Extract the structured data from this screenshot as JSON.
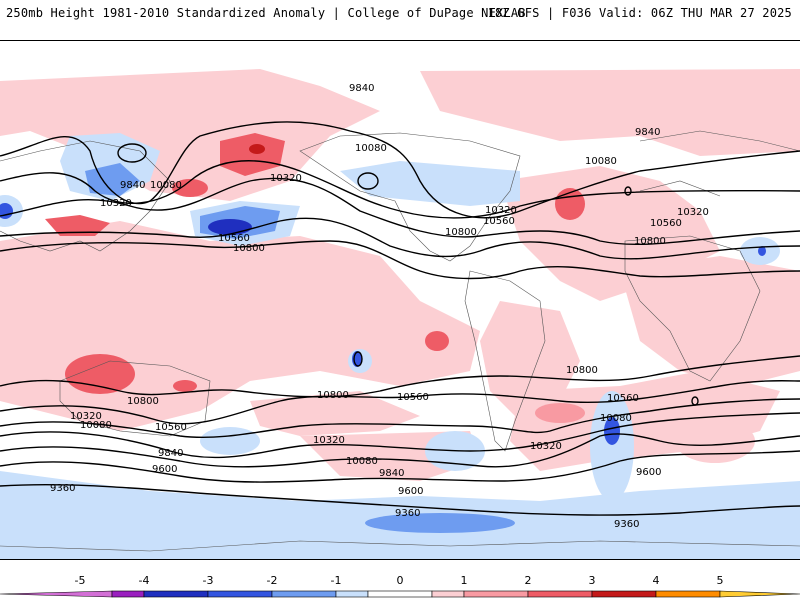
{
  "header": {
    "left_title": "250mb Height 1981-2010 Standardized Anomaly | College of DuPage NEXLAB",
    "right_title": "18Z GFS | F036 Valid: 06Z THU MAR 27 2025"
  },
  "colors": {
    "anomaly_bins": [
      {
        "range": [
          -5.5,
          -4.5
        ],
        "color": "#d36fd6"
      },
      {
        "range": [
          -4.5,
          -4
        ],
        "color": "#9a1fbf"
      },
      {
        "range": [
          -4,
          -3
        ],
        "color": "#1f2fbf"
      },
      {
        "range": [
          -3,
          -2
        ],
        "color": "#3355e0"
      },
      {
        "range": [
          -2,
          -1
        ],
        "color": "#6e9cf0"
      },
      {
        "range": [
          -1,
          -0.5
        ],
        "color": "#c9e0fb"
      },
      {
        "range": [
          -0.5,
          0.5
        ],
        "color": "#ffffff"
      },
      {
        "range": [
          0.5,
          1
        ],
        "color": "#fccfd3"
      },
      {
        "range": [
          1,
          2
        ],
        "color": "#f89aa2"
      },
      {
        "range": [
          2,
          3
        ],
        "color": "#ee5c66"
      },
      {
        "range": [
          3,
          4
        ],
        "color": "#c41a1a"
      },
      {
        "range": [
          4,
          5
        ],
        "color": "#ff8c00"
      },
      {
        "range": [
          5,
          5.5
        ],
        "color": "#ffcc33"
      }
    ]
  },
  "colorbar": {
    "ticks": [
      "-5",
      "-4",
      "-3",
      "-2",
      "-1",
      "0",
      "1",
      "2",
      "3",
      "4",
      "5"
    ]
  },
  "contour_labels": {
    "c9840_a": "9840",
    "c9840_b": "9840",
    "c9840_c": "9840",
    "c9840_d": "9840",
    "c9840_e": "9840",
    "c10080_a": "10080",
    "c10080_b": "10080",
    "c10080_c": "10080",
    "c10080_d": "10080",
    "c10080_e": "10080",
    "c10080_f": "10080",
    "c10320_a": "10320",
    "c10320_b": "10320",
    "c10320_c": "10320",
    "c10320_d": "10320",
    "c10320_e": "10320",
    "c10320_f": "10320",
    "c10320_g": "10320",
    "c10560_a": "10560",
    "c10560_b": "10560",
    "c10560_c": "10560",
    "c10560_d": "10560",
    "c10560_e": "10560",
    "c10560_f": "10560",
    "c10800_a": "10800",
    "c10800_b": "10800",
    "c10800_c": "10800",
    "c10800_d": "10800",
    "c10800_e": "10800",
    "c10800_f": "10800",
    "c9600_a": "9600",
    "c9600_b": "9600",
    "c9600_c": "9600",
    "c9360_a": "9360",
    "c9360_b": "9360",
    "c9360_c": "9360"
  }
}
